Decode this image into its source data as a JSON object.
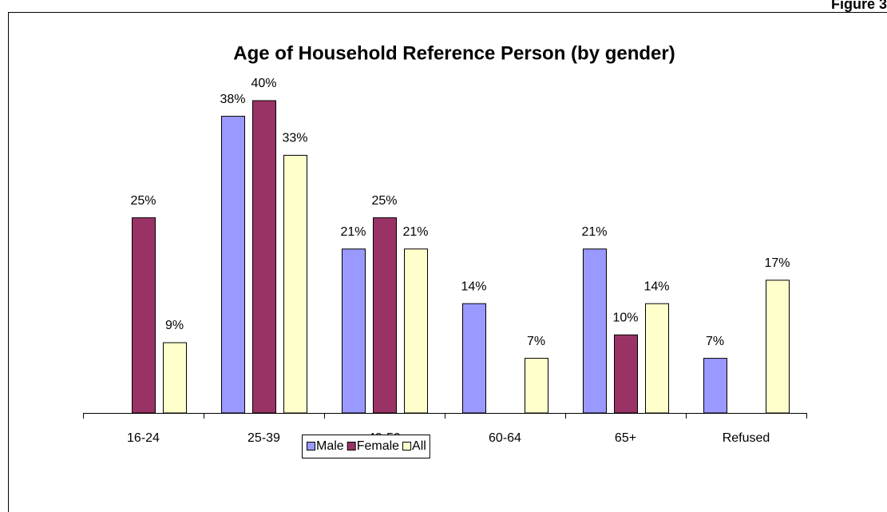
{
  "figure_label": "Figure 3",
  "chart_data": {
    "type": "bar",
    "title": "Age of Household Reference Person (by gender)",
    "categories": [
      "16-24",
      "25-39",
      "40-59",
      "60-64",
      "65+",
      "Refused"
    ],
    "series": [
      {
        "name": "Male",
        "color": "#9999ff",
        "values": [
          null,
          38,
          21,
          14,
          21,
          7
        ],
        "value_labels": [
          null,
          "38%",
          "21%",
          "14%",
          "21%",
          "7%"
        ]
      },
      {
        "name": "Female",
        "color": "#993366",
        "values": [
          25,
          40,
          25,
          null,
          10,
          null
        ],
        "value_labels": [
          "25%",
          "40%",
          "25%",
          null,
          "10%",
          null
        ]
      },
      {
        "name": "All",
        "color": "#ffffcc",
        "values": [
          9,
          33,
          21,
          7,
          14,
          17
        ],
        "value_labels": [
          "9%",
          "33%",
          "21%",
          "7%",
          "14%",
          "17%"
        ]
      }
    ],
    "legend": "bottom"
  }
}
